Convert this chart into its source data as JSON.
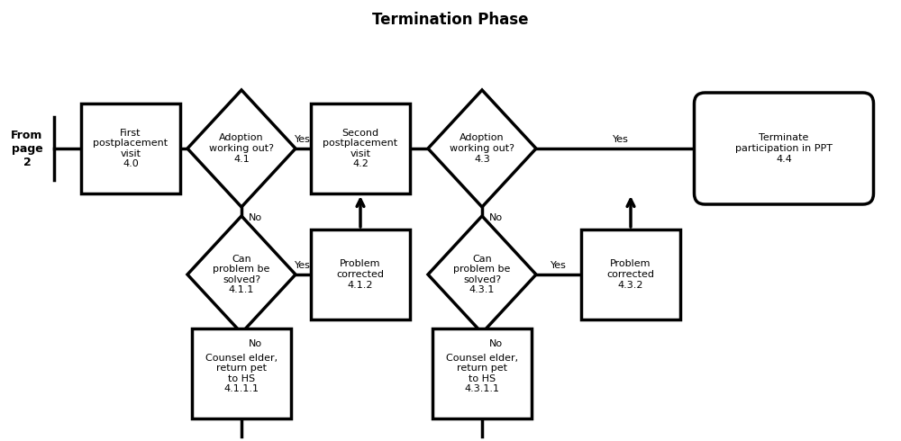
{
  "title": "Termination Phase",
  "title_fontsize": 12,
  "title_fontweight": "bold",
  "bg_color": "#ffffff",
  "line_color": "#000000",
  "line_width": 2.5,
  "fs": 8.0,
  "nodes": {
    "n40": {
      "label": "First\npostplacement\nvisit\n4.0"
    },
    "n41": {
      "label": "Adoption\nworking out?\n4.1"
    },
    "n42": {
      "label": "Second\npostplacement\nvisit\n4.2"
    },
    "n43": {
      "label": "Adoption\nworking out?\n4.3"
    },
    "n44": {
      "label": "Terminate\nparticipation in PPT\n4.4"
    },
    "n411": {
      "label": "Can\nproblem be\nsolved?\n4.1.1"
    },
    "n412": {
      "label": "Problem\ncorrected\n4.1.2"
    },
    "n4111": {
      "label": "Counsel elder,\nreturn pet\nto HS\n4.1.1.1"
    },
    "n431": {
      "label": "Can\nproblem be\nsolved?\n4.3.1"
    },
    "n432": {
      "label": "Problem\ncorrected\n4.3.2"
    },
    "n4311": {
      "label": "Counsel elder,\nreturn pet\nto HS\n4.3.1.1"
    }
  },
  "from_page_label": "From\npage\n2",
  "yes_label": "Yes",
  "no_label": "No"
}
